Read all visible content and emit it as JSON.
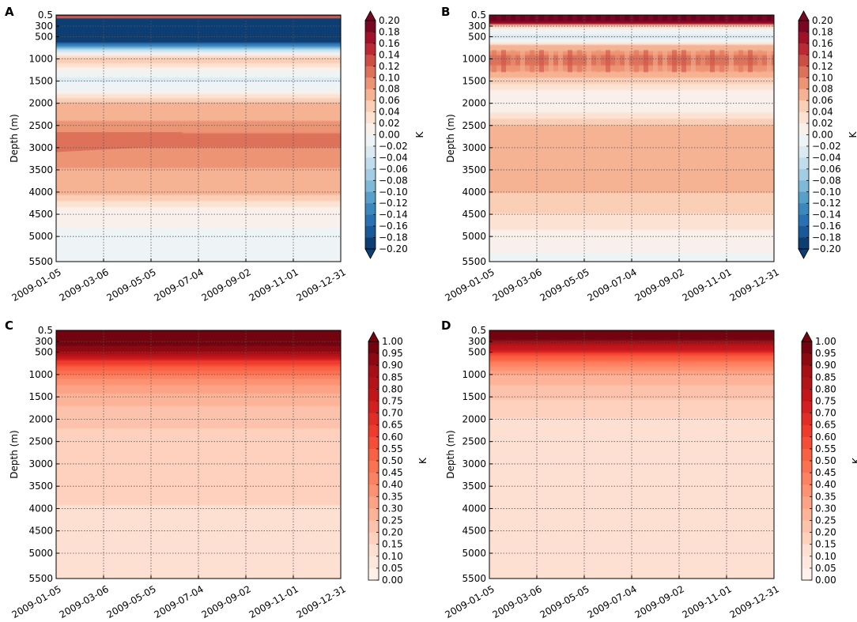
{
  "figure": {
    "description_visible": false
  },
  "chart_data": [
    {
      "panel": "A",
      "type": "heatmap",
      "subtype": "filled-contour",
      "ylabel": "Depth (m)",
      "y_ticks": [
        "0.5",
        "300",
        "500",
        "1000",
        "1500",
        "2000",
        "2500",
        "3000",
        "3500",
        "4000",
        "4500",
        "5000",
        "5500"
      ],
      "y_tick_values": [
        0.5,
        300,
        500,
        1000,
        1500,
        2000,
        2500,
        3000,
        3500,
        4000,
        4500,
        5000,
        5500
      ],
      "ylim": [
        5500,
        0.5
      ],
      "x_ticks": [
        "2009-01-05",
        "2009-03-06",
        "2009-05-05",
        "2009-07-04",
        "2009-09-02",
        "2009-11-01",
        "2009-12-31"
      ],
      "xlim": [
        "2009-01-05",
        "2009-12-31"
      ],
      "colormap": "RdBu_r",
      "colorbar_label": "K",
      "colorbar_range": [
        -0.2,
        0.2
      ],
      "colorbar_ticks": [
        "0.20",
        "0.18",
        "0.16",
        "0.14",
        "0.12",
        "0.10",
        "0.08",
        "0.06",
        "0.04",
        "0.02",
        "0.00",
        "−0.02",
        "−0.04",
        "−0.06",
        "−0.08",
        "−0.10",
        "−0.12",
        "−0.14",
        "−0.16",
        "−0.18",
        "−0.20"
      ],
      "colorbar_extend": "both",
      "grid": true,
      "depth_profile": [
        [
          0.5,
          0.2
        ],
        [
          50,
          0.15
        ],
        [
          100,
          -0.2
        ],
        [
          600,
          -0.2
        ],
        [
          850,
          -0.02
        ],
        [
          1000,
          0.06
        ],
        [
          1200,
          0.02
        ],
        [
          1450,
          -0.03
        ],
        [
          1700,
          0.0
        ],
        [
          2000,
          0.06
        ],
        [
          2400,
          0.08
        ],
        [
          2800,
          0.11
        ],
        [
          3200,
          0.09
        ],
        [
          3700,
          0.07
        ],
        [
          4000,
          0.07
        ],
        [
          4350,
          0.02
        ],
        [
          5000,
          -0.01
        ],
        [
          5500,
          -0.01
        ]
      ]
    },
    {
      "panel": "B",
      "type": "heatmap",
      "subtype": "filled-contour",
      "ylabel": "Depth (m)",
      "y_ticks": [
        "0.5",
        "300",
        "500",
        "1000",
        "1500",
        "2000",
        "2500",
        "3000",
        "3500",
        "4000",
        "4500",
        "5000",
        "5500"
      ],
      "y_tick_values": [
        0.5,
        300,
        500,
        1000,
        1500,
        2000,
        2500,
        3000,
        3500,
        4000,
        4500,
        5000,
        5500
      ],
      "ylim": [
        5500,
        0.5
      ],
      "x_ticks": [
        "2009-01-05",
        "2009-03-06",
        "2009-05-05",
        "2009-07-04",
        "2009-09-02",
        "2009-11-01",
        "2009-12-31"
      ],
      "xlim": [
        "2009-01-05",
        "2009-12-31"
      ],
      "colormap": "RdBu_r",
      "colorbar_label": "K",
      "colorbar_range": [
        -0.2,
        0.2
      ],
      "colorbar_ticks": [
        "0.20",
        "0.18",
        "0.16",
        "0.14",
        "0.12",
        "0.10",
        "0.08",
        "0.06",
        "0.04",
        "0.02",
        "0.00",
        "−0.02",
        "−0.04",
        "−0.06",
        "−0.08",
        "−0.10",
        "−0.12",
        "−0.14",
        "−0.16",
        "−0.18",
        "−0.20"
      ],
      "colorbar_extend": "both",
      "grid": true,
      "depth_profile": [
        [
          0.5,
          0.2
        ],
        [
          200,
          0.2
        ],
        [
          300,
          0.04
        ],
        [
          500,
          -0.04
        ],
        [
          700,
          0.06
        ],
        [
          1000,
          0.12
        ],
        [
          1400,
          0.06
        ],
        [
          1700,
          0.02
        ],
        [
          2200,
          0.02
        ],
        [
          2500,
          0.06
        ],
        [
          3000,
          0.07
        ],
        [
          3500,
          0.07
        ],
        [
          4000,
          0.06
        ],
        [
          4500,
          0.04
        ],
        [
          5000,
          0.01
        ],
        [
          5500,
          -0.005
        ]
      ]
    },
    {
      "panel": "C",
      "type": "heatmap",
      "subtype": "filled-contour",
      "ylabel": "Depth (m)",
      "y_ticks": [
        "0.5",
        "300",
        "500",
        "1000",
        "1500",
        "2000",
        "2500",
        "3000",
        "3500",
        "4000",
        "4500",
        "5000",
        "5500"
      ],
      "y_tick_values": [
        0.5,
        300,
        500,
        1000,
        1500,
        2000,
        2500,
        3000,
        3500,
        4000,
        4500,
        5000,
        5500
      ],
      "ylim": [
        5500,
        0.5
      ],
      "x_ticks": [
        "2009-01-05",
        "2009-03-06",
        "2009-05-05",
        "2009-07-04",
        "2009-09-02",
        "2009-11-01",
        "2009-12-31"
      ],
      "xlim": [
        "2009-01-05",
        "2009-12-31"
      ],
      "colormap": "Reds",
      "colorbar_label": "K",
      "colorbar_range": [
        0.0,
        1.0
      ],
      "colorbar_ticks": [
        "1.00",
        "0.95",
        "0.90",
        "0.85",
        "0.80",
        "0.75",
        "0.70",
        "0.65",
        "0.60",
        "0.55",
        "0.50",
        "0.45",
        "0.40",
        "0.35",
        "0.30",
        "0.25",
        "0.20",
        "0.15",
        "0.10",
        "0.05",
        "0.00"
      ],
      "colorbar_extend": "max",
      "grid": true,
      "depth_profile": [
        [
          0.5,
          1.0
        ],
        [
          300,
          1.0
        ],
        [
          500,
          0.9
        ],
        [
          700,
          0.65
        ],
        [
          900,
          0.5
        ],
        [
          1100,
          0.4
        ],
        [
          1400,
          0.3
        ],
        [
          1700,
          0.25
        ],
        [
          2200,
          0.2
        ],
        [
          3000,
          0.18
        ],
        [
          3800,
          0.16
        ],
        [
          4200,
          0.12
        ],
        [
          5000,
          0.1
        ],
        [
          5500,
          0.1
        ]
      ]
    },
    {
      "panel": "D",
      "type": "heatmap",
      "subtype": "filled-contour",
      "ylabel": "Depth (m)",
      "y_ticks": [
        "0.5",
        "300",
        "500",
        "1000",
        "1500",
        "2000",
        "2500",
        "3000",
        "3500",
        "4000",
        "4500",
        "5000",
        "5500"
      ],
      "y_tick_values": [
        0.5,
        300,
        500,
        1000,
        1500,
        2000,
        2500,
        3000,
        3500,
        4000,
        4500,
        5000,
        5500
      ],
      "ylim": [
        5500,
        0.5
      ],
      "x_ticks": [
        "2009-01-05",
        "2009-03-06",
        "2009-05-05",
        "2009-07-04",
        "2009-09-02",
        "2009-11-01",
        "2009-12-31"
      ],
      "xlim": [
        "2009-01-05",
        "2009-12-31"
      ],
      "colormap": "Reds",
      "colorbar_label": "K",
      "colorbar_range": [
        0.0,
        1.0
      ],
      "colorbar_ticks": [
        "1.00",
        "0.95",
        "0.90",
        "0.85",
        "0.80",
        "0.75",
        "0.70",
        "0.65",
        "0.60",
        "0.55",
        "0.50",
        "0.45",
        "0.40",
        "0.35",
        "0.30",
        "0.25",
        "0.20",
        "0.15",
        "0.10",
        "0.05",
        "0.00"
      ],
      "colorbar_extend": "max",
      "grid": true,
      "depth_profile": [
        [
          0.5,
          1.0
        ],
        [
          200,
          1.0
        ],
        [
          400,
          0.8
        ],
        [
          600,
          0.55
        ],
        [
          800,
          0.4
        ],
        [
          1000,
          0.3
        ],
        [
          1400,
          0.22
        ],
        [
          2000,
          0.15
        ],
        [
          3000,
          0.12
        ],
        [
          4000,
          0.12
        ],
        [
          4300,
          0.15
        ],
        [
          5000,
          0.1
        ],
        [
          5500,
          0.1
        ]
      ]
    }
  ],
  "colors": {
    "RdBu_r": [
      "#053061",
      "#2166ac",
      "#4393c3",
      "#92c5de",
      "#d1e5f0",
      "#f7f7f7",
      "#fddbc7",
      "#f4a582",
      "#d6604d",
      "#b2182b",
      "#67001f"
    ],
    "Reds": [
      "#fff5f0",
      "#fee0d2",
      "#fcbba1",
      "#fc9272",
      "#fb6a4a",
      "#ef3b2c",
      "#cb181d",
      "#a50f15",
      "#67000d"
    ],
    "axis": "#000000",
    "grid": "#555555"
  }
}
